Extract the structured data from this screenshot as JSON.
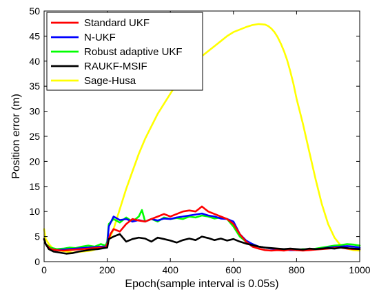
{
  "chart_data": {
    "type": "line",
    "title": "",
    "xlabel": "Epoch(sample interval is 0.05s)",
    "ylabel": "Position error (m)",
    "xlim": [
      0,
      1000
    ],
    "ylim": [
      0,
      50
    ],
    "xticks": [
      0,
      200,
      400,
      600,
      800,
      1000
    ],
    "yticks": [
      0,
      5,
      10,
      15,
      20,
      25,
      30,
      35,
      40,
      45,
      50
    ],
    "grid": false,
    "legend_position": "top-left",
    "series": [
      {
        "name": "Sage-Husa",
        "color": "#ffff00",
        "x": [
          0,
          5,
          15,
          30,
          50,
          70,
          90,
          100,
          120,
          150,
          180,
          200,
          220,
          240,
          260,
          280,
          300,
          320,
          340,
          360,
          380,
          400,
          420,
          440,
          460,
          480,
          500,
          520,
          540,
          560,
          580,
          600,
          620,
          640,
          660,
          680,
          700,
          710,
          720,
          730,
          740,
          750,
          760,
          770,
          780,
          790,
          800,
          820,
          840,
          860,
          880,
          900,
          920,
          940,
          960,
          980,
          1000
        ],
        "y": [
          6.5,
          4.5,
          3.5,
          2.5,
          2.2,
          2.0,
          1.8,
          1.9,
          2.0,
          2.2,
          2.8,
          3.5,
          6.5,
          10.5,
          14.5,
          18.0,
          21.5,
          24.5,
          27.0,
          29.5,
          31.5,
          33.5,
          35.5,
          37.0,
          38.5,
          40.0,
          41.0,
          42.0,
          43.0,
          44.0,
          45.0,
          45.8,
          46.3,
          46.8,
          47.2,
          47.4,
          47.3,
          47.0,
          46.5,
          45.8,
          44.8,
          43.5,
          42.0,
          40.2,
          38.0,
          35.5,
          32.5,
          27.5,
          22.0,
          16.5,
          11.5,
          7.5,
          4.8,
          3.2,
          2.6,
          2.3,
          2.2
        ]
      },
      {
        "name": "Robust adaptive UKF",
        "color": "#00ff00",
        "x": [
          0,
          5,
          20,
          40,
          60,
          80,
          100,
          120,
          140,
          160,
          180,
          195,
          200,
          205,
          220,
          240,
          260,
          280,
          300,
          310,
          320,
          340,
          360,
          380,
          400,
          420,
          440,
          460,
          480,
          500,
          520,
          540,
          560,
          580,
          600,
          620,
          640,
          660,
          680,
          700,
          720,
          740,
          760,
          780,
          800,
          820,
          840,
          860,
          880,
          900,
          920,
          940,
          960,
          980,
          1000
        ],
        "y": [
          4.5,
          3.5,
          2.8,
          2.5,
          2.6,
          2.8,
          2.7,
          3.0,
          3.2,
          3.0,
          3.5,
          3.2,
          4.0,
          7.5,
          8.5,
          7.8,
          8.8,
          8.0,
          9.0,
          10.3,
          8.0,
          8.5,
          8.0,
          8.8,
          8.5,
          8.7,
          8.5,
          9.0,
          8.8,
          9.2,
          9.0,
          8.6,
          8.8,
          8.5,
          7.0,
          5.0,
          4.0,
          3.5,
          3.0,
          2.8,
          2.6,
          2.5,
          2.4,
          2.5,
          2.3,
          2.5,
          2.4,
          2.6,
          2.8,
          3.0,
          3.2,
          3.3,
          3.5,
          3.4,
          3.2
        ]
      },
      {
        "name": "N-UKF",
        "color": "#0000ff",
        "x": [
          0,
          5,
          20,
          40,
          60,
          80,
          100,
          120,
          140,
          160,
          180,
          195,
          200,
          205,
          220,
          240,
          260,
          280,
          300,
          320,
          340,
          360,
          380,
          400,
          420,
          440,
          460,
          480,
          500,
          520,
          540,
          560,
          580,
          600,
          620,
          640,
          660,
          680,
          700,
          720,
          740,
          760,
          780,
          800,
          820,
          840,
          860,
          880,
          900,
          920,
          940,
          960,
          980,
          1000
        ],
        "y": [
          4.5,
          3.5,
          2.5,
          2.3,
          2.4,
          2.5,
          2.6,
          2.7,
          2.8,
          2.9,
          3.0,
          3.0,
          3.5,
          7.0,
          9.0,
          8.3,
          8.5,
          8.0,
          8.3,
          8.0,
          8.5,
          8.2,
          8.6,
          8.5,
          8.8,
          9.0,
          9.2,
          9.4,
          9.6,
          9.2,
          9.0,
          8.6,
          8.5,
          8.0,
          5.5,
          4.2,
          3.5,
          3.0,
          2.8,
          2.6,
          2.5,
          2.4,
          2.3,
          2.3,
          2.4,
          2.3,
          2.5,
          2.6,
          2.8,
          2.9,
          3.0,
          3.1,
          3.0,
          2.8
        ]
      },
      {
        "name": "Standard UKF",
        "color": "#ff0000",
        "x": [
          0,
          5,
          20,
          40,
          60,
          80,
          100,
          120,
          140,
          160,
          180,
          195,
          200,
          210,
          220,
          240,
          260,
          280,
          300,
          320,
          340,
          360,
          380,
          400,
          420,
          440,
          460,
          480,
          490,
          500,
          510,
          520,
          540,
          560,
          580,
          600,
          620,
          640,
          660,
          680,
          700,
          720,
          740,
          760,
          780,
          800,
          820,
          840,
          860,
          880,
          900,
          920,
          940,
          960,
          980,
          1000
        ],
        "y": [
          4.5,
          3.5,
          2.5,
          2.3,
          2.2,
          2.3,
          2.4,
          2.5,
          2.6,
          2.7,
          2.8,
          2.8,
          3.5,
          5.5,
          6.5,
          6.0,
          7.5,
          8.5,
          8.2,
          8.0,
          8.5,
          9.0,
          9.5,
          9.0,
          9.5,
          10.0,
          10.2,
          10.0,
          10.5,
          11.0,
          10.5,
          10.0,
          9.5,
          9.0,
          8.5,
          7.5,
          5.5,
          4.0,
          3.0,
          2.6,
          2.3,
          2.2,
          2.3,
          2.2,
          2.4,
          2.3,
          2.2,
          2.3,
          2.4,
          2.5,
          2.6,
          2.7,
          2.8,
          2.6,
          2.5,
          2.5
        ]
      },
      {
        "name": "RAUKF-MSIF",
        "color": "#000000",
        "x": [
          0,
          5,
          15,
          30,
          50,
          70,
          90,
          110,
          130,
          150,
          170,
          190,
          200,
          205,
          220,
          240,
          260,
          280,
          300,
          320,
          340,
          360,
          380,
          400,
          420,
          440,
          460,
          480,
          500,
          520,
          540,
          560,
          580,
          600,
          620,
          640,
          660,
          680,
          700,
          720,
          740,
          760,
          780,
          800,
          820,
          840,
          860,
          880,
          900,
          920,
          940,
          960,
          980,
          1000
        ],
        "y": [
          4.5,
          3.5,
          2.5,
          2.0,
          1.8,
          1.6,
          1.7,
          2.0,
          2.2,
          2.4,
          2.5,
          2.7,
          2.8,
          4.5,
          5.0,
          5.5,
          4.0,
          4.5,
          4.8,
          4.6,
          4.0,
          4.8,
          4.5,
          4.2,
          3.8,
          4.3,
          4.6,
          4.3,
          5.0,
          4.7,
          4.3,
          4.6,
          4.2,
          4.5,
          4.0,
          3.6,
          3.3,
          3.0,
          2.8,
          2.7,
          2.6,
          2.5,
          2.6,
          2.5,
          2.4,
          2.6,
          2.5,
          2.6,
          2.7,
          2.6,
          2.8,
          2.7,
          2.6,
          2.5
        ]
      }
    ],
    "legend_order": [
      "Standard UKF",
      "N-UKF",
      "Robust adaptive UKF",
      "RAUKF-MSIF",
      "Sage-Husa"
    ]
  }
}
